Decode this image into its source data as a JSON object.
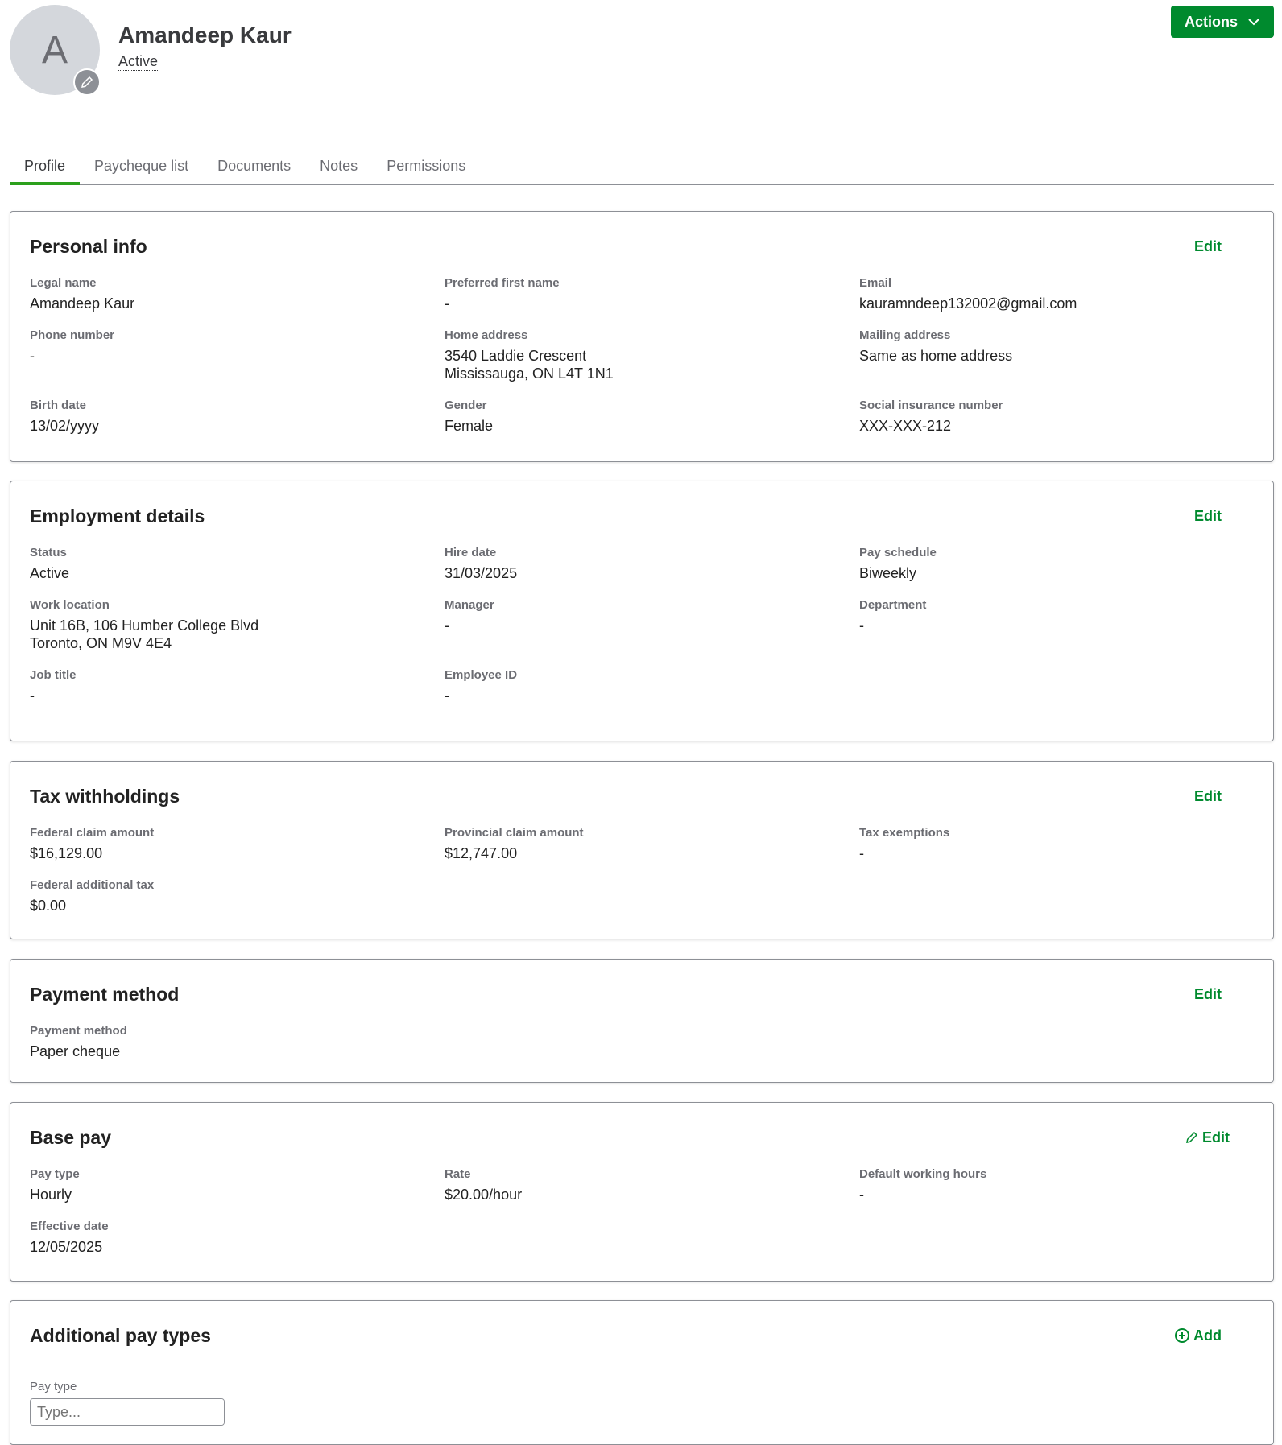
{
  "header": {
    "avatar_initial": "A",
    "name": "Amandeep Kaur",
    "status": "Active",
    "actions_label": "Actions"
  },
  "tabs": [
    {
      "label": "Profile"
    },
    {
      "label": "Paycheque list"
    },
    {
      "label": "Documents"
    },
    {
      "label": "Notes"
    },
    {
      "label": "Permissions"
    }
  ],
  "colors": {
    "accent": "#008a2e",
    "tab_active": "#2ca01c"
  },
  "sections": [
    {
      "title": "Personal info",
      "action": "Edit",
      "fields": [
        {
          "label": "Legal name",
          "value": "Amandeep Kaur"
        },
        {
          "label": "Preferred first name",
          "value": "-"
        },
        {
          "label": "Email",
          "value": "kauramndeep132002@gmail.com"
        },
        {
          "label": "Phone number",
          "value": "-"
        },
        {
          "label": "Home address",
          "value": "3540 Laddie Crescent\nMississauga, ON L4T 1N1"
        },
        {
          "label": "Mailing address",
          "value": "Same as home address"
        },
        {
          "label": "Birth date",
          "value": "13/02/yyyy"
        },
        {
          "label": "Gender",
          "value": "Female"
        },
        {
          "label": "Social insurance number",
          "value": "XXX-XXX-212"
        }
      ]
    },
    {
      "title": "Employment details",
      "action": "Edit",
      "fields": [
        {
          "label": "Status",
          "value": "Active"
        },
        {
          "label": "Hire date",
          "value": "31/03/2025"
        },
        {
          "label": "Pay schedule",
          "value": "Biweekly"
        },
        {
          "label": "Work location",
          "value": "Unit 16B, 106 Humber College Blvd\nToronto, ON M9V 4E4"
        },
        {
          "label": "Manager",
          "value": "-"
        },
        {
          "label": "Department",
          "value": "-"
        },
        {
          "label": "Job title",
          "value": "-"
        },
        {
          "label": "Employee ID",
          "value": "-"
        }
      ]
    },
    {
      "title": "Tax withholdings",
      "action": "Edit",
      "fields": [
        {
          "label": "Federal claim amount",
          "value": "$16,129.00"
        },
        {
          "label": "Provincial claim amount",
          "value": "$12,747.00"
        },
        {
          "label": "Tax exemptions",
          "value": "-"
        },
        {
          "label": "Federal additional tax",
          "value": "$0.00"
        }
      ]
    },
    {
      "title": "Payment method",
      "action": "Edit",
      "fields": [
        {
          "label": "Payment method",
          "value": "Paper cheque"
        }
      ]
    },
    {
      "title": "Base pay",
      "action": "Edit",
      "fields": [
        {
          "label": "Pay type",
          "value": "Hourly"
        },
        {
          "label": "Rate",
          "value": "$20.00/hour"
        },
        {
          "label": "Default working hours",
          "value": "-"
        },
        {
          "label": "Effective date",
          "value": "12/05/2025"
        }
      ]
    }
  ],
  "additional": {
    "title": "Additional pay types",
    "action": "Add",
    "pay_type_label": "Pay type",
    "pay_type_placeholder": "Type..."
  }
}
